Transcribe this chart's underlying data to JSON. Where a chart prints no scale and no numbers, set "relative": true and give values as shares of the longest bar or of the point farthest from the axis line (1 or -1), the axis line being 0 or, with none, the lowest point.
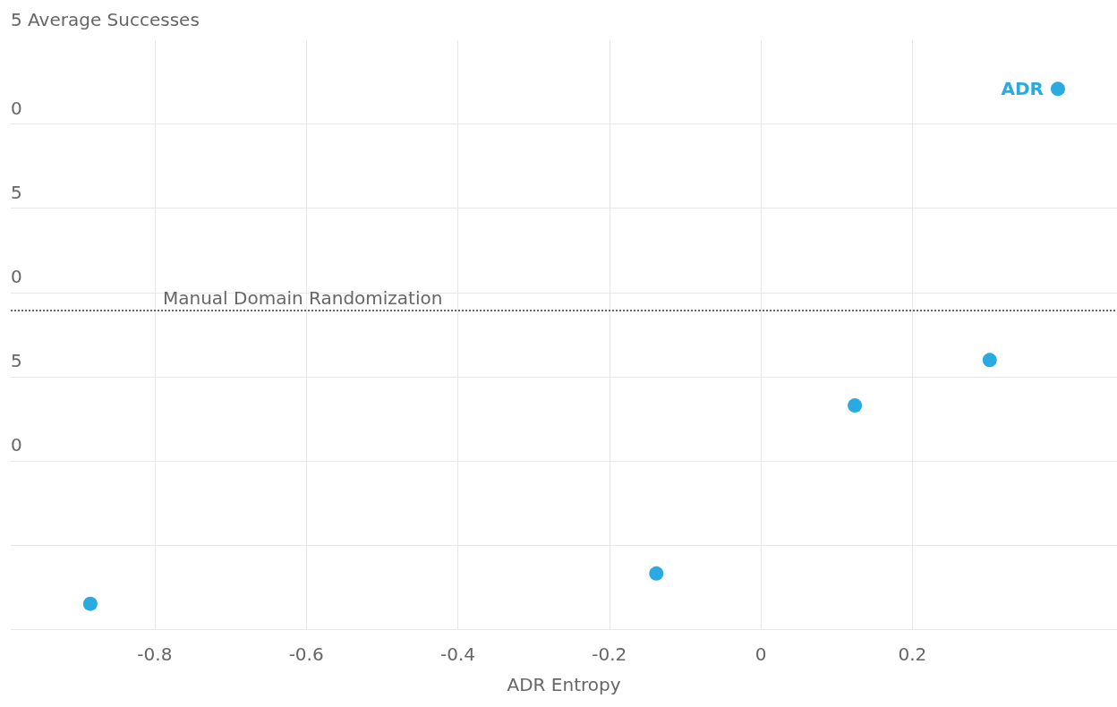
{
  "chart_data": {
    "type": "scatter",
    "relative": true,
    "ylabel": "5 Average Successes",
    "xlabel": "ADR Entropy",
    "x": [
      -0.885,
      -0.138,
      0.124,
      0.302,
      0.392
    ],
    "values": [
      0.047,
      0.103,
      0.414,
      0.498,
      1
    ],
    "color": "#29abe2",
    "marker": "circle",
    "grid": true,
    "xlim": [
      -0.99,
      0.47
    ],
    "xticks": [
      -0.8,
      -0.6,
      -0.4,
      -0.2,
      0.0,
      0.2
    ],
    "ref_lines": [
      {
        "axis": "y",
        "value": 0.586,
        "label": "Manual Domain Randomization",
        "color": "#666666",
        "line_style": "dotted"
      }
    ],
    "annotations": [
      "0",
      "5",
      "0",
      "5",
      "0",
      {
        "text": "ADR",
        "x": 0.392,
        "y": 1
      }
    ]
  }
}
